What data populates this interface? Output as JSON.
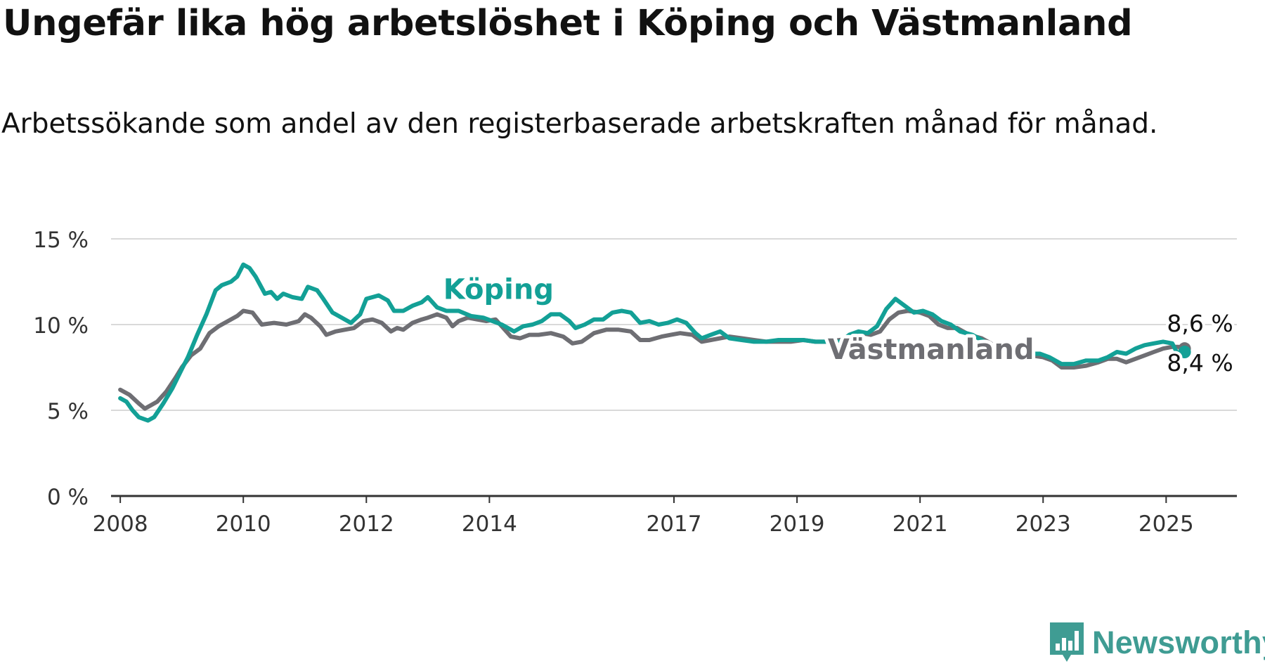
{
  "header": {
    "title": "Ungefär lika hög arbetslöshet i Köping och Västmanland",
    "subtitle": "Arbetssökande som andel av den registerbaserade arbetskraften månad för månad."
  },
  "brand": {
    "name": "Newsworthy",
    "logo_icon": "bar-chart-speech-bubble-icon",
    "color": "#3f9c93"
  },
  "chart_data": {
    "type": "line",
    "ylim": [
      0,
      15
    ],
    "xlim": [
      2007.85,
      2026.15
    ],
    "y_ticks": [
      {
        "value": 0,
        "label": "0 %"
      },
      {
        "value": 5,
        "label": "5 %"
      },
      {
        "value": 10,
        "label": "10 %"
      },
      {
        "value": 15,
        "label": "15 %"
      }
    ],
    "x_ticks": [
      {
        "value": 2008,
        "label": "2008"
      },
      {
        "value": 2010,
        "label": "2010"
      },
      {
        "value": 2012,
        "label": "2012"
      },
      {
        "value": 2014,
        "label": "2014"
      },
      {
        "value": 2017,
        "label": "2017"
      },
      {
        "value": 2019,
        "label": "2019"
      },
      {
        "value": 2021,
        "label": "2021"
      },
      {
        "value": 2023,
        "label": "2023"
      },
      {
        "value": 2025,
        "label": "2025"
      }
    ],
    "grid": true,
    "series": [
      {
        "name": "Västmanland",
        "color": "#6e6e73",
        "last_label": "8,6 %",
        "points": [
          [
            2008.0,
            6.2
          ],
          [
            2008.15,
            5.9
          ],
          [
            2008.3,
            5.4
          ],
          [
            2008.4,
            5.1
          ],
          [
            2008.5,
            5.3
          ],
          [
            2008.6,
            5.5
          ],
          [
            2008.75,
            6.1
          ],
          [
            2008.9,
            6.9
          ],
          [
            2009.0,
            7.5
          ],
          [
            2009.15,
            8.2
          ],
          [
            2009.3,
            8.6
          ],
          [
            2009.45,
            9.5
          ],
          [
            2009.6,
            9.9
          ],
          [
            2009.75,
            10.2
          ],
          [
            2009.9,
            10.5
          ],
          [
            2010.0,
            10.8
          ],
          [
            2010.15,
            10.7
          ],
          [
            2010.3,
            10.0
          ],
          [
            2010.5,
            10.1
          ],
          [
            2010.7,
            10.0
          ],
          [
            2010.9,
            10.2
          ],
          [
            2011.0,
            10.6
          ],
          [
            2011.1,
            10.4
          ],
          [
            2011.25,
            9.9
          ],
          [
            2011.35,
            9.4
          ],
          [
            2011.5,
            9.6
          ],
          [
            2011.65,
            9.7
          ],
          [
            2011.8,
            9.8
          ],
          [
            2011.95,
            10.2
          ],
          [
            2012.1,
            10.3
          ],
          [
            2012.25,
            10.1
          ],
          [
            2012.4,
            9.6
          ],
          [
            2012.5,
            9.8
          ],
          [
            2012.6,
            9.7
          ],
          [
            2012.75,
            10.1
          ],
          [
            2012.9,
            10.3
          ],
          [
            2013.0,
            10.4
          ],
          [
            2013.15,
            10.6
          ],
          [
            2013.3,
            10.4
          ],
          [
            2013.4,
            9.9
          ],
          [
            2013.5,
            10.2
          ],
          [
            2013.65,
            10.4
          ],
          [
            2013.8,
            10.3
          ],
          [
            2013.95,
            10.2
          ],
          [
            2014.1,
            10.3
          ],
          [
            2014.2,
            9.9
          ],
          [
            2014.35,
            9.3
          ],
          [
            2014.5,
            9.2
          ],
          [
            2014.65,
            9.4
          ],
          [
            2014.8,
            9.4
          ],
          [
            2015.0,
            9.5
          ],
          [
            2015.2,
            9.3
          ],
          [
            2015.35,
            8.9
          ],
          [
            2015.5,
            9.0
          ],
          [
            2015.7,
            9.5
          ],
          [
            2015.9,
            9.7
          ],
          [
            2016.1,
            9.7
          ],
          [
            2016.3,
            9.6
          ],
          [
            2016.45,
            9.1
          ],
          [
            2016.6,
            9.1
          ],
          [
            2016.8,
            9.3
          ],
          [
            2016.95,
            9.4
          ],
          [
            2017.1,
            9.5
          ],
          [
            2017.3,
            9.4
          ],
          [
            2017.45,
            9.0
          ],
          [
            2017.6,
            9.1
          ],
          [
            2017.75,
            9.2
          ],
          [
            2017.9,
            9.3
          ],
          [
            2018.1,
            9.2
          ],
          [
            2018.3,
            9.1
          ],
          [
            2018.5,
            9.0
          ],
          [
            2018.7,
            9.0
          ],
          [
            2018.9,
            9.0
          ],
          [
            2019.1,
            9.1
          ],
          [
            2019.3,
            9.0
          ],
          [
            2019.5,
            9.0
          ],
          [
            2019.7,
            9.1
          ],
          [
            2019.9,
            9.3
          ],
          [
            2020.05,
            9.5
          ],
          [
            2020.2,
            9.4
          ],
          [
            2020.35,
            9.6
          ],
          [
            2020.5,
            10.3
          ],
          [
            2020.65,
            10.7
          ],
          [
            2020.8,
            10.8
          ],
          [
            2021.0,
            10.7
          ],
          [
            2021.15,
            10.5
          ],
          [
            2021.3,
            10.0
          ],
          [
            2021.45,
            9.8
          ],
          [
            2021.6,
            9.8
          ],
          [
            2021.8,
            9.4
          ],
          [
            2022.0,
            9.2
          ],
          [
            2022.15,
            8.9
          ],
          [
            2022.3,
            8.4
          ],
          [
            2022.45,
            8.2
          ],
          [
            2022.6,
            8.2
          ],
          [
            2022.8,
            8.2
          ],
          [
            2023.0,
            8.1
          ],
          [
            2023.15,
            7.9
          ],
          [
            2023.3,
            7.5
          ],
          [
            2023.5,
            7.5
          ],
          [
            2023.7,
            7.6
          ],
          [
            2023.9,
            7.8
          ],
          [
            2024.05,
            8.0
          ],
          [
            2024.2,
            8.0
          ],
          [
            2024.35,
            7.8
          ],
          [
            2024.5,
            8.0
          ],
          [
            2024.65,
            8.2
          ],
          [
            2024.8,
            8.4
          ],
          [
            2024.95,
            8.6
          ],
          [
            2025.1,
            8.7
          ],
          [
            2025.2,
            8.7
          ],
          [
            2025.3,
            8.6
          ]
        ]
      },
      {
        "name": "Köping",
        "color": "#13a096",
        "last_label": "8,4 %",
        "points": [
          [
            2008.0,
            5.7
          ],
          [
            2008.1,
            5.5
          ],
          [
            2008.2,
            5.0
          ],
          [
            2008.3,
            4.6
          ],
          [
            2008.45,
            4.4
          ],
          [
            2008.55,
            4.6
          ],
          [
            2008.7,
            5.4
          ],
          [
            2008.85,
            6.3
          ],
          [
            2009.0,
            7.4
          ],
          [
            2009.1,
            8.1
          ],
          [
            2009.25,
            9.4
          ],
          [
            2009.4,
            10.6
          ],
          [
            2009.55,
            12.0
          ],
          [
            2009.65,
            12.3
          ],
          [
            2009.8,
            12.5
          ],
          [
            2009.9,
            12.8
          ],
          [
            2010.0,
            13.5
          ],
          [
            2010.1,
            13.3
          ],
          [
            2010.2,
            12.8
          ],
          [
            2010.35,
            11.8
          ],
          [
            2010.45,
            11.9
          ],
          [
            2010.55,
            11.5
          ],
          [
            2010.65,
            11.8
          ],
          [
            2010.8,
            11.6
          ],
          [
            2010.95,
            11.5
          ],
          [
            2011.05,
            12.2
          ],
          [
            2011.2,
            12.0
          ],
          [
            2011.3,
            11.5
          ],
          [
            2011.45,
            10.7
          ],
          [
            2011.6,
            10.4
          ],
          [
            2011.75,
            10.1
          ],
          [
            2011.9,
            10.6
          ],
          [
            2012.0,
            11.5
          ],
          [
            2012.1,
            11.6
          ],
          [
            2012.2,
            11.7
          ],
          [
            2012.35,
            11.4
          ],
          [
            2012.45,
            10.8
          ],
          [
            2012.6,
            10.8
          ],
          [
            2012.75,
            11.1
          ],
          [
            2012.9,
            11.3
          ],
          [
            2013.0,
            11.6
          ],
          [
            2013.15,
            11.0
          ],
          [
            2013.3,
            10.8
          ],
          [
            2013.5,
            10.8
          ],
          [
            2013.7,
            10.5
          ],
          [
            2013.9,
            10.4
          ],
          [
            2014.05,
            10.2
          ],
          [
            2014.2,
            10.0
          ],
          [
            2014.4,
            9.6
          ],
          [
            2014.55,
            9.9
          ],
          [
            2014.7,
            10.0
          ],
          [
            2014.85,
            10.2
          ],
          [
            2015.0,
            10.6
          ],
          [
            2015.15,
            10.6
          ],
          [
            2015.3,
            10.2
          ],
          [
            2015.4,
            9.8
          ],
          [
            2015.55,
            10.0
          ],
          [
            2015.7,
            10.3
          ],
          [
            2015.85,
            10.3
          ],
          [
            2016.0,
            10.7
          ],
          [
            2016.15,
            10.8
          ],
          [
            2016.3,
            10.7
          ],
          [
            2016.45,
            10.1
          ],
          [
            2016.6,
            10.2
          ],
          [
            2016.75,
            10.0
          ],
          [
            2016.9,
            10.1
          ],
          [
            2017.05,
            10.3
          ],
          [
            2017.2,
            10.1
          ],
          [
            2017.35,
            9.5
          ],
          [
            2017.45,
            9.2
          ],
          [
            2017.6,
            9.4
          ],
          [
            2017.75,
            9.6
          ],
          [
            2017.9,
            9.2
          ],
          [
            2018.1,
            9.1
          ],
          [
            2018.3,
            9.0
          ],
          [
            2018.5,
            9.0
          ],
          [
            2018.7,
            9.1
          ],
          [
            2018.9,
            9.1
          ],
          [
            2019.1,
            9.1
          ],
          [
            2019.3,
            9.0
          ],
          [
            2019.5,
            9.0
          ],
          [
            2019.7,
            9.0
          ],
          [
            2019.85,
            9.4
          ],
          [
            2020.0,
            9.6
          ],
          [
            2020.15,
            9.5
          ],
          [
            2020.3,
            9.9
          ],
          [
            2020.45,
            10.9
          ],
          [
            2020.6,
            11.5
          ],
          [
            2020.75,
            11.1
          ],
          [
            2020.9,
            10.7
          ],
          [
            2021.05,
            10.8
          ],
          [
            2021.2,
            10.6
          ],
          [
            2021.35,
            10.2
          ],
          [
            2021.5,
            10.0
          ],
          [
            2021.65,
            9.6
          ],
          [
            2021.85,
            9.4
          ],
          [
            2022.0,
            9.1
          ],
          [
            2022.15,
            8.8
          ],
          [
            2022.3,
            8.4
          ],
          [
            2022.5,
            8.4
          ],
          [
            2022.65,
            8.2
          ],
          [
            2022.8,
            8.3
          ],
          [
            2022.95,
            8.3
          ],
          [
            2023.1,
            8.1
          ],
          [
            2023.3,
            7.7
          ],
          [
            2023.5,
            7.7
          ],
          [
            2023.7,
            7.9
          ],
          [
            2023.9,
            7.9
          ],
          [
            2024.05,
            8.1
          ],
          [
            2024.2,
            8.4
          ],
          [
            2024.35,
            8.3
          ],
          [
            2024.5,
            8.6
          ],
          [
            2024.65,
            8.8
          ],
          [
            2024.8,
            8.9
          ],
          [
            2024.95,
            9.0
          ],
          [
            2025.1,
            8.9
          ],
          [
            2025.2,
            8.2
          ],
          [
            2025.3,
            8.4
          ]
        ]
      }
    ],
    "inline_labels": [
      {
        "series": "Köping",
        "text": "Köping",
        "x": 2013.25,
        "y": 11.5
      },
      {
        "series": "Västmanland",
        "text": "Västmanland",
        "x": 2019.5,
        "y": 8.0
      }
    ],
    "end_labels": [
      {
        "text": "8,6 %",
        "x": 2025.3,
        "y": 9.6
      },
      {
        "text": "8,4 %",
        "x": 2025.3,
        "y": 7.3
      }
    ]
  }
}
